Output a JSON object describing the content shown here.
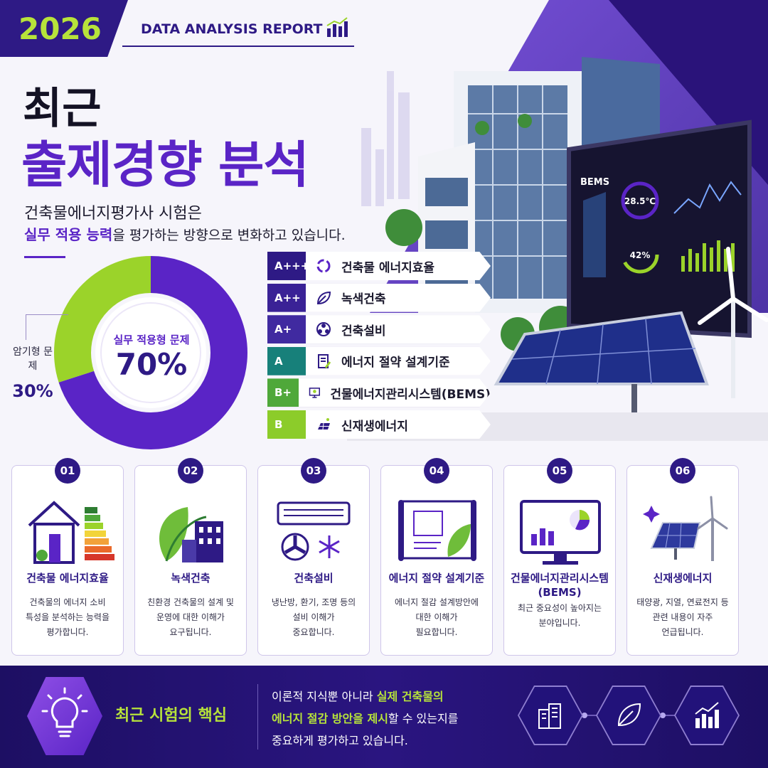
{
  "header": {
    "year": "2026",
    "report": "DATA ANALYSIS REPORT",
    "title_line1": "최근",
    "title_line2": "출제경향 분석",
    "subtitle_line1": "건축물에너지평가사 시험은",
    "subtitle_highlight": "실무 적용 능력",
    "subtitle_rest": "을 평가하는 방향으로 변화하고 있습니다."
  },
  "donut": {
    "practical_label": "실무 적용형 문제",
    "practical_value": "70%",
    "practical_fraction": 0.7,
    "memorize_label": "암기형 문제",
    "memorize_value": "30%",
    "memorize_fraction": 0.3,
    "colors": {
      "practical": "#5a24c6",
      "memorize": "#9bd32a"
    }
  },
  "ratings": [
    {
      "grade": "A+++",
      "label": "건축물 에너지효율",
      "icon": "recycle-icon",
      "color": "#2e1a85"
    },
    {
      "grade": "A++",
      "label": "녹색건축",
      "icon": "leaf-icon",
      "color": "#3a2296"
    },
    {
      "grade": "A+",
      "label": "건축설비",
      "icon": "fan-icon",
      "color": "#402aa0"
    },
    {
      "grade": "A",
      "label": "에너지 절약 설계기준",
      "icon": "document-icon",
      "color": "#17807a"
    },
    {
      "grade": "B+",
      "label": "건물에너지관리시스템(BEMS)",
      "icon": "monitor-icon",
      "color": "#4fa83a"
    },
    {
      "grade": "B",
      "label": "신재생에너지",
      "icon": "solar-icon",
      "color": "#8ccc2a"
    }
  ],
  "bems": {
    "title": "BEMS",
    "temperature": "28.5℃",
    "percent": "42%"
  },
  "cards": [
    {
      "num": "01",
      "title": "건축물 에너지효율",
      "desc": [
        "건축물의 에너지 소비",
        "특성을 분석하는 능력을",
        "평가합니다."
      ],
      "icon": "energy-house-icon"
    },
    {
      "num": "02",
      "title": "녹색건축",
      "desc": [
        "친환경 건축물의 설계 및",
        "운영에 대한 이해가",
        "요구됩니다."
      ],
      "icon": "green-building-icon"
    },
    {
      "num": "03",
      "title": "건축설비",
      "desc": [
        "냉난방, 환기, 조명 등의",
        "설비 이해가",
        "중요합니다."
      ],
      "icon": "hvac-icon"
    },
    {
      "num": "04",
      "title": "에너지 절약 설계기준",
      "desc": [
        "에너지 절감 설계방안에",
        "대한 이해가",
        "필요합니다."
      ],
      "icon": "blueprint-icon"
    },
    {
      "num": "05",
      "title": "건물에너지관리시스템",
      "title2": "(BEMS)",
      "desc": [
        "최근 중요성이 높아지는",
        "분야입니다."
      ],
      "icon": "monitor-chart-icon"
    },
    {
      "num": "06",
      "title": "신재생에너지",
      "desc": [
        "태양광, 지열, 연료전지 등",
        "관련 내용이 자주",
        "언급됩니다."
      ],
      "icon": "solar-wind-icon"
    }
  ],
  "footer": {
    "title": "최근 시험의 핵심",
    "text_pre": "이론적 지식뿐 아니라 ",
    "text_hl1": "실제 건축물의",
    "text_hl2": "에너지 절감 방안을 제시",
    "text_mid": "할 수 있는지를",
    "text_line3": "중요하게 평가하고 있습니다."
  }
}
